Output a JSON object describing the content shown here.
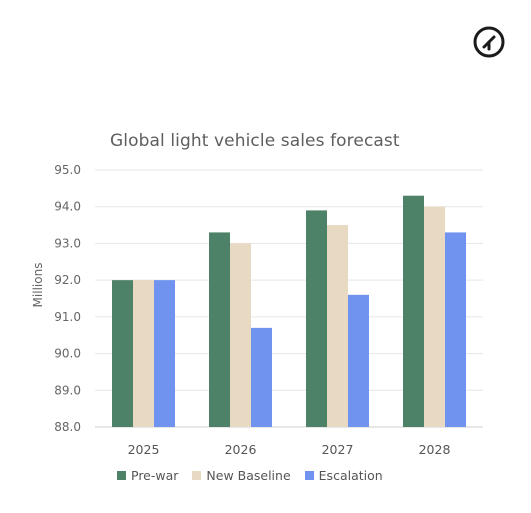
{
  "logo": {
    "icon": "circle-slash-logo-icon"
  },
  "chart_data": {
    "type": "bar",
    "title": "Global light vehicle sales forecast",
    "ylabel": "Millions",
    "xlabel": "",
    "categories": [
      "2025",
      "2026",
      "2027",
      "2028"
    ],
    "ylim": [
      88.0,
      95.0
    ],
    "yticks": [
      "88.0",
      "89.0",
      "90.0",
      "91.0",
      "92.0",
      "93.0",
      "94.0",
      "95.0"
    ],
    "grid": true,
    "legend_position": "bottom",
    "series": [
      {
        "name": "Pre-war",
        "color": "#4e8268",
        "values": [
          92.0,
          93.3,
          93.9,
          94.3
        ]
      },
      {
        "name": "New Baseline",
        "color": "#e8d9c3",
        "values": [
          92.0,
          93.0,
          93.5,
          94.0
        ]
      },
      {
        "name": "Escalation",
        "color": "#7093ef",
        "values": [
          92.0,
          90.7,
          91.6,
          93.3
        ]
      }
    ]
  }
}
